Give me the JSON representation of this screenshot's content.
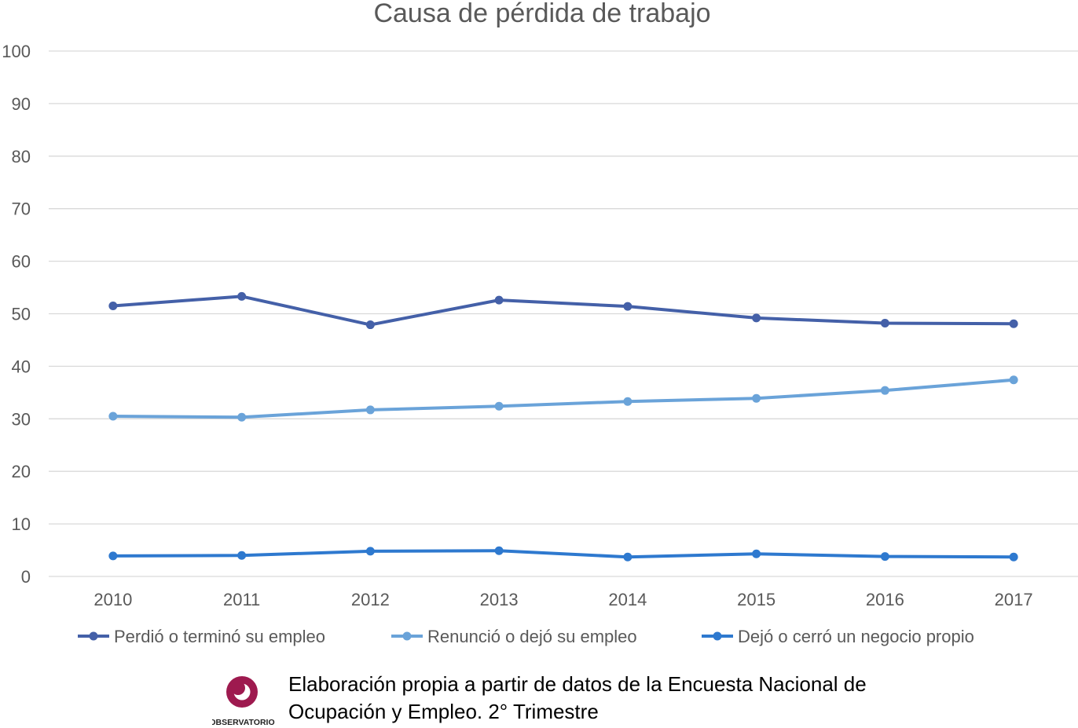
{
  "chart_data": {
    "type": "line",
    "title": "Causa de pérdida de trabajo",
    "xlabel": "",
    "ylabel": "",
    "categories": [
      "2010",
      "2011",
      "2012",
      "2013",
      "2014",
      "2015",
      "2016",
      "2017"
    ],
    "ylim": [
      0,
      100
    ],
    "yticks": [
      "0",
      "10",
      "20",
      "30",
      "40",
      "50",
      "60",
      "70",
      "80",
      "90",
      "100"
    ],
    "grid": true,
    "legend_position": "bottom",
    "series": [
      {
        "name": "Perdió o terminó su empleo",
        "color": "#4460a8",
        "values": [
          51.5,
          53.3,
          47.9,
          52.6,
          51.4,
          49.2,
          48.2,
          48.1
        ]
      },
      {
        "name": "Renunció o dejó su empleo",
        "color": "#6aa3d9",
        "values": [
          30.5,
          30.3,
          31.7,
          32.4,
          33.3,
          33.9,
          35.4,
          37.4
        ]
      },
      {
        "name": "Dejó o cerró un negocio propio",
        "color": "#2e79cf",
        "values": [
          3.9,
          4.0,
          4.8,
          4.9,
          3.7,
          4.3,
          3.8,
          3.7
        ]
      }
    ]
  },
  "footer": {
    "source_line1": "Elaboración propia a partir de datos de la Encuesta Nacional de",
    "source_line2": "Ocupación y Empleo. 2° Trimestre",
    "logo_text": "OBSERVATORIO",
    "logo_color": "#9e1a4f"
  }
}
